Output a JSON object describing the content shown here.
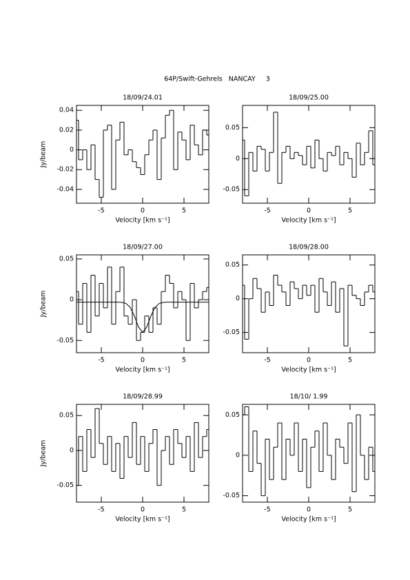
{
  "page_title": "64P/Swift-Gehrels   NANCAY     3",
  "chart_data": [
    {
      "type": "step",
      "title": "18/09/24.01",
      "xlabel": "Velocity [km s⁻¹]",
      "ylabel": "Jy/beam",
      "x": [
        -8,
        -7.5,
        -7,
        -6.5,
        -6,
        -5.5,
        -5,
        -4.5,
        -4,
        -3.5,
        -3,
        -2.5,
        -2,
        -1.5,
        -1,
        -0.5,
        0,
        0.5,
        1,
        1.5,
        2,
        2.5,
        3,
        3.5,
        4,
        4.5,
        5,
        5.5,
        6,
        6.5,
        7,
        7.5,
        8
      ],
      "series": [
        {
          "color": "#000000",
          "values": [
            0.03,
            -0.01,
            0.0,
            -0.02,
            0.005,
            -0.03,
            -0.048,
            0.02,
            0.025,
            -0.04,
            0.01,
            0.028,
            -0.005,
            0.0,
            -0.012,
            -0.018,
            -0.025,
            -0.005,
            0.01,
            0.02,
            -0.03,
            0.012,
            0.035,
            0.04,
            -0.02,
            0.018,
            0.01,
            -0.01,
            0.025,
            0.005,
            -0.005,
            0.02,
            0.015
          ]
        }
      ],
      "xlim": [
        -8,
        8
      ],
      "xticks": [
        -5,
        0,
        5
      ],
      "ylim": [
        -0.054,
        0.045
      ],
      "yticks": [
        -0.04,
        -0.02,
        0,
        0.02,
        0.04
      ]
    },
    {
      "type": "step",
      "title": "18/09/25.00",
      "xlabel": "Velocity [km s⁻¹]",
      "x": [
        -8,
        -7.5,
        -7,
        -6.5,
        -6,
        -5.5,
        -5,
        -4.5,
        -4,
        -3.5,
        -3,
        -2.5,
        -2,
        -1.5,
        -1,
        -0.5,
        0,
        0.5,
        1,
        1.5,
        2,
        2.5,
        3,
        3.5,
        4,
        4.5,
        5,
        5.5,
        6,
        6.5,
        7,
        7.5,
        8
      ],
      "series": [
        {
          "color": "#000000",
          "values": [
            0.03,
            -0.06,
            0.01,
            -0.02,
            0.02,
            0.015,
            -0.02,
            0.01,
            0.075,
            -0.04,
            0.01,
            0.02,
            0.0,
            0.01,
            0.005,
            -0.01,
            0.02,
            -0.015,
            0.03,
            0.0,
            -0.02,
            0.01,
            0.005,
            0.02,
            -0.01,
            0.01,
            0.0,
            -0.03,
            0.025,
            -0.01,
            0.01,
            0.045,
            -0.01
          ]
        }
      ],
      "xlim": [
        -8,
        8
      ],
      "xticks": [
        -5,
        0,
        5
      ],
      "ylim": [
        -0.072,
        0.086
      ],
      "yticks": [
        -0.05,
        0,
        0.05
      ]
    },
    {
      "type": "step",
      "title": "18/09/27.00",
      "xlabel": "Velocity [km s⁻¹]",
      "ylabel": "Jy/beam",
      "x": [
        -8,
        -7.5,
        -7,
        -6.5,
        -6,
        -5.5,
        -5,
        -4.5,
        -4,
        -3.5,
        -3,
        -2.5,
        -2,
        -1.5,
        -1,
        -0.5,
        0,
        0.5,
        1,
        1.5,
        2,
        2.5,
        3,
        3.5,
        4,
        4.5,
        5,
        5.5,
        6,
        6.5,
        7,
        7.5,
        8
      ],
      "series": [
        {
          "color": "#000000",
          "values": [
            0.01,
            -0.03,
            0.02,
            -0.04,
            0.03,
            -0.02,
            0.02,
            -0.01,
            0.04,
            -0.03,
            0.01,
            0.04,
            -0.02,
            -0.03,
            0.0,
            -0.05,
            -0.04,
            -0.02,
            -0.04,
            -0.01,
            -0.03,
            0.01,
            0.03,
            0.02,
            -0.01,
            0.01,
            0.0,
            -0.05,
            0.02,
            -0.01,
            0.0,
            0.01,
            0.015
          ]
        },
        {
          "color": "#000000",
          "style": "line",
          "values": [
            -0.003,
            -0.003,
            -0.003,
            -0.003,
            -0.003,
            -0.003,
            -0.003,
            -0.003,
            -0.003,
            -0.003,
            -0.003,
            -0.0033,
            -0.0046,
            -0.0094,
            -0.02,
            -0.0335,
            -0.04,
            -0.0335,
            -0.02,
            -0.0094,
            -0.0046,
            -0.0033,
            -0.003,
            -0.003,
            -0.003,
            -0.003,
            -0.003,
            -0.003,
            -0.003,
            -0.003,
            -0.003,
            -0.003,
            -0.003
          ]
        }
      ],
      "xlim": [
        -8,
        8
      ],
      "xticks": [
        -5,
        0,
        5
      ],
      "ylim": [
        -0.065,
        0.055
      ],
      "yticks": [
        -0.05,
        0,
        0.05
      ]
    },
    {
      "type": "step",
      "title": "18/09/28.00",
      "xlabel": "Velocity [km s⁻¹]",
      "x": [
        -8,
        -7.5,
        -7,
        -6.5,
        -6,
        -5.5,
        -5,
        -4.5,
        -4,
        -3.5,
        -3,
        -2.5,
        -2,
        -1.5,
        -1,
        -0.5,
        0,
        0.5,
        1,
        1.5,
        2,
        2.5,
        3,
        3.5,
        4,
        4.5,
        5,
        5.5,
        6,
        6.5,
        7,
        7.5,
        8
      ],
      "series": [
        {
          "color": "#000000",
          "values": [
            0.02,
            -0.06,
            0.0,
            0.03,
            0.015,
            -0.02,
            0.01,
            -0.01,
            0.035,
            0.02,
            0.01,
            -0.01,
            0.025,
            0.015,
            0.0,
            0.02,
            0.005,
            0.02,
            -0.02,
            0.03,
            0.01,
            -0.01,
            0.025,
            -0.02,
            0.015,
            -0.07,
            0.02,
            0.005,
            0.0,
            -0.01,
            0.01,
            0.02,
            0.01
          ]
        }
      ],
      "xlim": [
        -8,
        8
      ],
      "xticks": [
        -5,
        0,
        5
      ],
      "ylim": [
        -0.08,
        0.065
      ],
      "yticks": [
        -0.05,
        0,
        0.05
      ]
    },
    {
      "type": "step",
      "title": "18/09/28.99",
      "xlabel": "Velocity [km s⁻¹]",
      "ylabel": "Jy/beam",
      "x": [
        -8,
        -7.5,
        -7,
        -6.5,
        -6,
        -5.5,
        -5,
        -4.5,
        -4,
        -3.5,
        -3,
        -2.5,
        -2,
        -1.5,
        -1,
        -0.5,
        0,
        0.5,
        1,
        1.5,
        2,
        2.5,
        3,
        3.5,
        4,
        4.5,
        5,
        5.5,
        6,
        6.5,
        7,
        7.5,
        8
      ],
      "series": [
        {
          "color": "#000000",
          "values": [
            -0.05,
            0.02,
            -0.03,
            0.03,
            -0.01,
            0.06,
            0.01,
            -0.02,
            0.02,
            -0.03,
            0.01,
            -0.04,
            0.02,
            -0.01,
            0.04,
            -0.02,
            0.02,
            -0.03,
            0.01,
            0.03,
            -0.05,
            0.0,
            0.02,
            -0.02,
            0.03,
            0.01,
            -0.01,
            0.02,
            -0.03,
            0.04,
            -0.01,
            0.02,
            0.03
          ]
        }
      ],
      "xlim": [
        -8,
        8
      ],
      "xticks": [
        -5,
        0,
        5
      ],
      "ylim": [
        -0.074,
        0.066
      ],
      "yticks": [
        -0.05,
        0,
        0.05
      ]
    },
    {
      "type": "step",
      "title": "18/10/ 1.99",
      "xlabel": "Velocity [km s⁻¹]",
      "x": [
        -8,
        -7.5,
        -7,
        -6.5,
        -6,
        -5.5,
        -5,
        -4.5,
        -4,
        -3.5,
        -3,
        -2.5,
        -2,
        -1.5,
        -1,
        -0.5,
        0,
        0.5,
        1,
        1.5,
        2,
        2.5,
        3,
        3.5,
        4,
        4.5,
        5,
        5.5,
        6,
        6.5,
        7,
        7.5,
        8
      ],
      "series": [
        {
          "color": "#000000",
          "values": [
            0.05,
            0.06,
            -0.02,
            0.03,
            -0.01,
            -0.05,
            0.02,
            -0.03,
            0.01,
            0.04,
            -0.03,
            0.02,
            0.0,
            0.04,
            -0.02,
            0.02,
            -0.04,
            0.01,
            0.03,
            -0.02,
            0.04,
            0.0,
            -0.03,
            0.02,
            0.01,
            -0.01,
            0.04,
            -0.045,
            0.05,
            0.0,
            -0.03,
            0.01,
            -0.02
          ]
        }
      ],
      "xlim": [
        -8,
        8
      ],
      "xticks": [
        -5,
        0,
        5
      ],
      "ylim": [
        -0.058,
        0.063
      ],
      "yticks": [
        -0.05,
        0,
        0.05
      ]
    }
  ]
}
